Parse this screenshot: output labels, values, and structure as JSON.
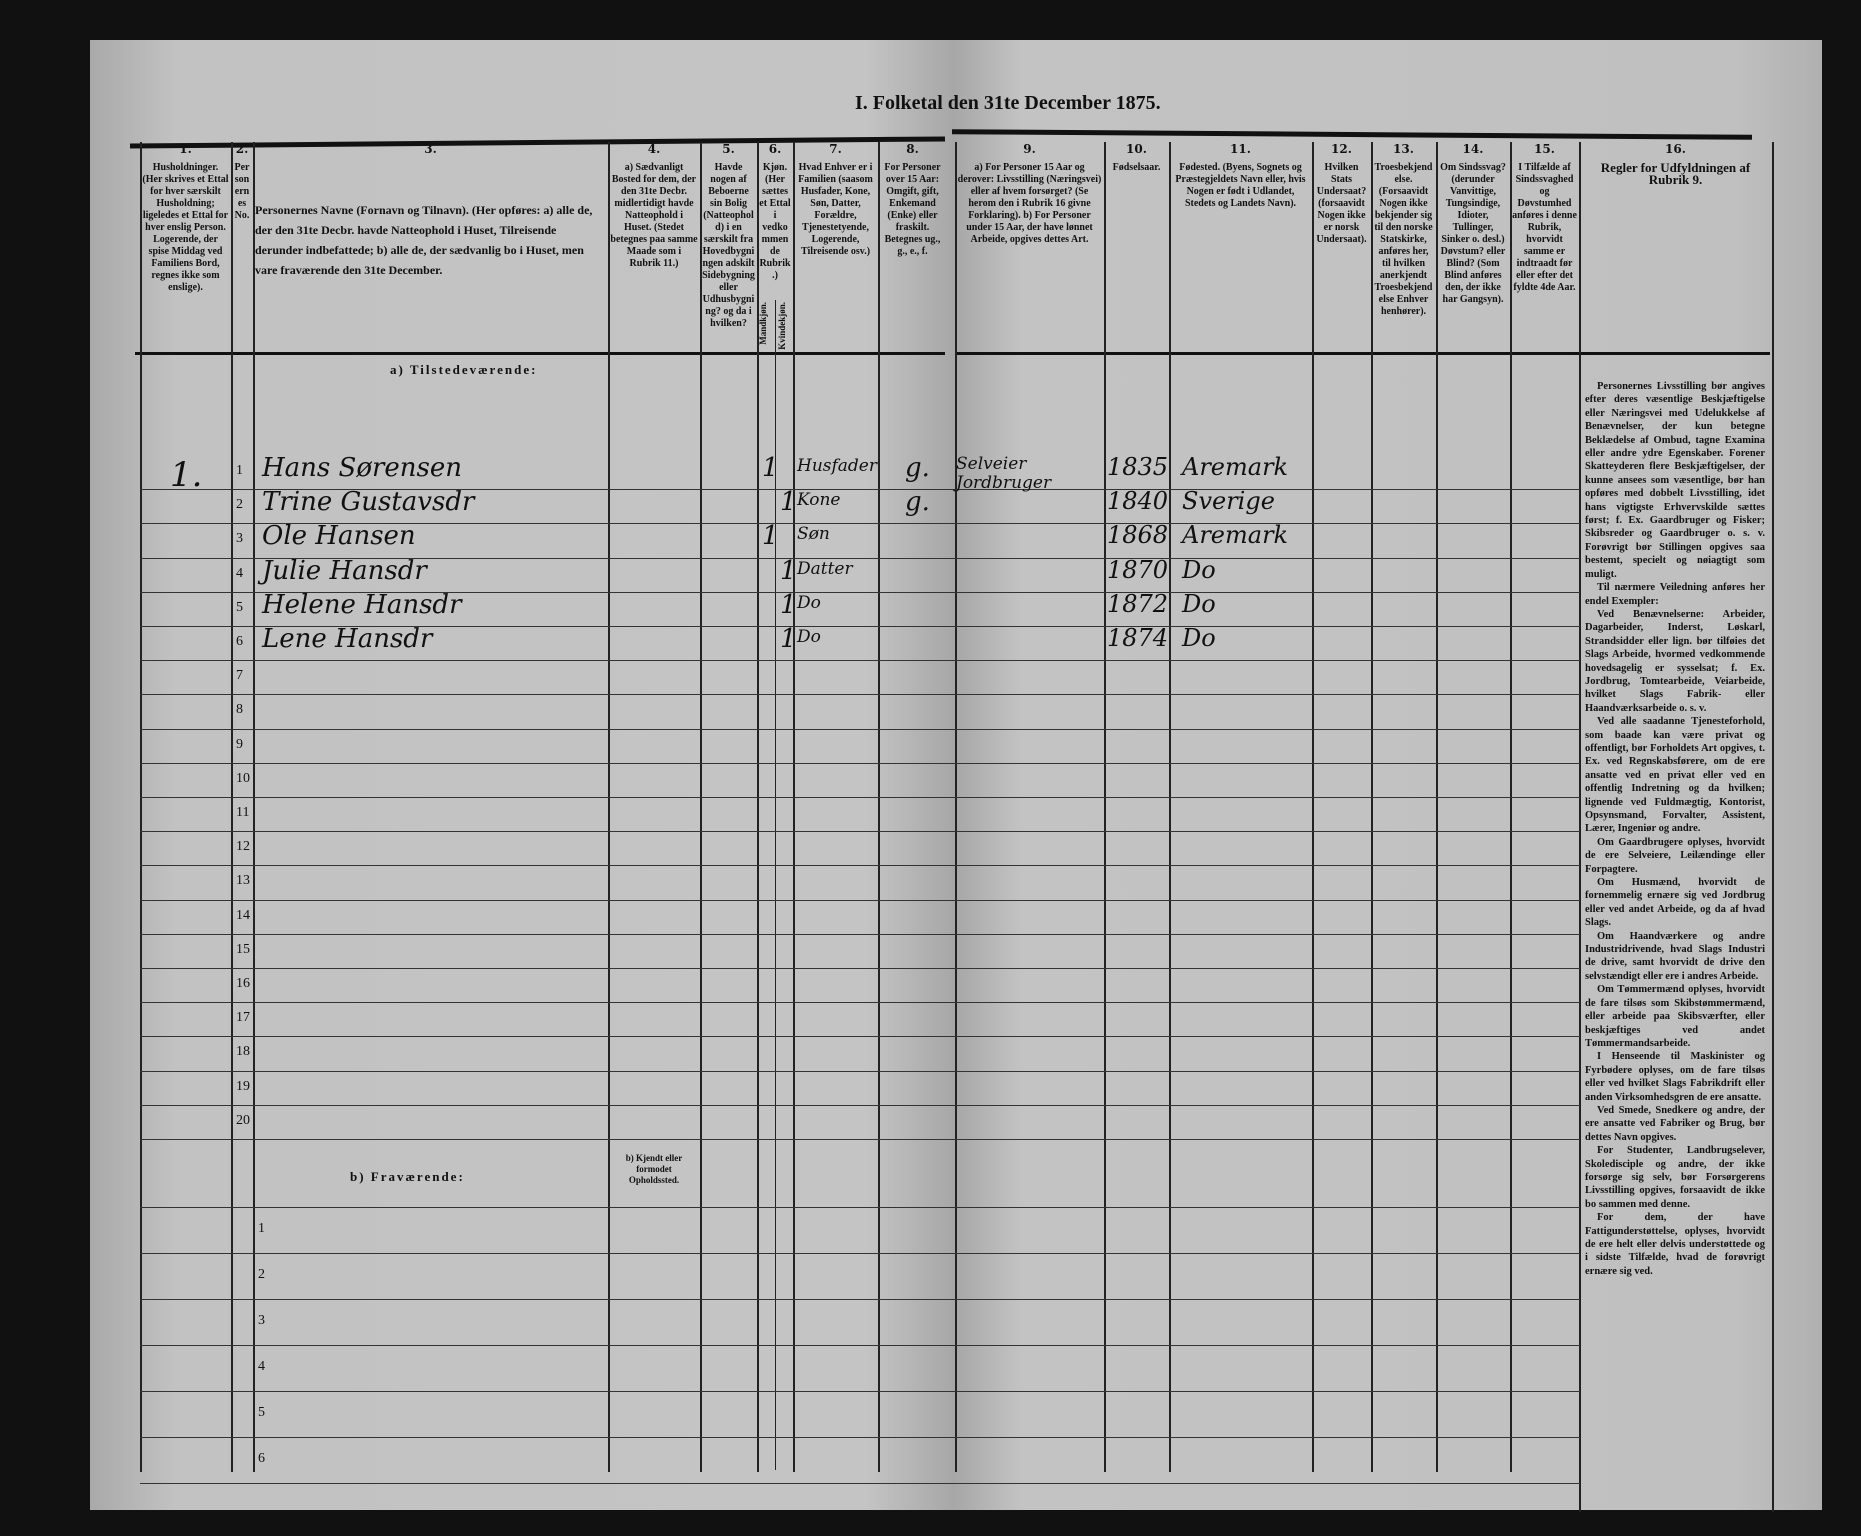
{
  "title": "I. Folketal den 31te December 1875.",
  "columns": [
    {
      "num": "1.",
      "header": "Husholdninger. (Her skrives et Ettal for hver særskilt Husholdning; ligeledes et Ettal for hver enslig Person. Logerende, der spise Middag ved Familiens Bord, regnes ikke som enslige)."
    },
    {
      "num": "2.",
      "header": "Personernes No."
    },
    {
      "num": "3.",
      "header": "Personernes Navne (Fornavn og Tilnavn). (Her opføres: a) alle de, der den 31te Decbr. havde Natteophold i Huset, Tilreisende derunder indbefattede; b) alle de, der sædvanlig bo i Huset, men vare fraværende den 31te December."
    },
    {
      "num": "4.",
      "header": "a) Sædvanligt Bosted for dem, der den 31te Decbr. midlertidigt havde Natteophold i Huset. (Stedet betegnes paa samme Maade som i Rubrik 11.)"
    },
    {
      "num": "5.",
      "header": "Havde nogen af Beboerne sin Bolig (Natteophold) i en særskilt fra Hovedbygningen adskilt Sidebygning eller Udhusbygning? og da i hvilken?"
    },
    {
      "num": "6.",
      "header": "Kjøn. (Her sættes et Ettal i vedkommende Rubrik.)"
    },
    {
      "num": "7.",
      "header": "Hvad Enhver er i Familien (saasom Husfader, Kone, Søn, Datter, Forældre, Tjenestetyende, Logerende, Tilreisende osv.)"
    },
    {
      "num": "8.",
      "header": "For Personer over 15 Aar: Omgift, gift, Enkemand (Enke) eller fraskilt. Betegnes ug., g., e., f."
    },
    {
      "num": "9.",
      "header": "a) For Personer 15 Aar og derover: Livsstilling (Næringsvei) eller af hvem forsørget? (Se herom den i Rubrik 16 givne Forklaring). b) For Personer under 15 Aar, der have lønnet Arbeide, opgives dettes Art."
    },
    {
      "num": "10.",
      "header": "Fødselsaar."
    },
    {
      "num": "11.",
      "header": "Fødested. (Byens, Sognets og Præstegjeldets Navn eller, hvis Nogen er født i Udlandet, Stedets og Landets Navn)."
    },
    {
      "num": "12.",
      "header": "Hvilken Stats Undersaat? (forsaavidt Nogen ikke er norsk Undersaat)."
    },
    {
      "num": "13.",
      "header": "Troesbekjendelse. (Forsaavidt Nogen ikke bekjender sig til den norske Statskirke, anføres her, til hvilken anerkjendt Troesbekjendelse Enhver henhører)."
    },
    {
      "num": "14.",
      "header": "Om Sindssvag? (derunder Vanvittige, Tungsindige, Idioter, Tullinger, Sinker o. desl.) Døvstum? eller Blind? (Som Blind anføres den, der ikke har Gangsyn)."
    },
    {
      "num": "15.",
      "header": "I Tilfælde af Sindssvaghed og Døvstumhed anføres i denne Rubrik, hvorvidt samme er indtraadt før eller efter det fyldte 4de Aar."
    },
    {
      "num": "16.",
      "header": "Regler for Udfyldningen af Rubrik 9."
    }
  ],
  "sex_subheaders": [
    "Mandkjøn.",
    "Kvindekjøn."
  ],
  "section_present": "a) Tilstedeværende:",
  "section_absent": "b) Fraværende:",
  "absent_col4_header": "b) Kjendt eller formodet Opholdssted.",
  "household_number": "1.",
  "persons": [
    {
      "no": "1",
      "name": "Hans Sørensen",
      "male": "1",
      "female": "",
      "role": "Husfader",
      "marital": "g.",
      "occupation": "Selveier Jordbruger",
      "born": "1835",
      "birthplace": "Aremark"
    },
    {
      "no": "2",
      "name": "Trine Gustavsdr",
      "male": "",
      "female": "1",
      "role": "Kone",
      "marital": "g.",
      "occupation": "",
      "born": "1840",
      "birthplace": "Sverige"
    },
    {
      "no": "3",
      "name": "Ole Hansen",
      "male": "1",
      "female": "",
      "role": "Søn",
      "marital": "",
      "occupation": "",
      "born": "1868",
      "birthplace": "Aremark"
    },
    {
      "no": "4",
      "name": "Julie Hansdr",
      "male": "",
      "female": "1",
      "role": "Datter",
      "marital": "",
      "occupation": "",
      "born": "1870",
      "birthplace": "Do"
    },
    {
      "no": "5",
      "name": "Helene Hansdr",
      "male": "",
      "female": "1",
      "role": "Do",
      "marital": "",
      "occupation": "",
      "born": "1872",
      "birthplace": "Do"
    },
    {
      "no": "6",
      "name": "Lene Hansdr",
      "male": "",
      "female": "1",
      "role": "Do",
      "marital": "",
      "occupation": "",
      "born": "1874",
      "birthplace": "Do"
    }
  ],
  "present_row_numbers": [
    "1",
    "2",
    "3",
    "4",
    "5",
    "6",
    "7",
    "8",
    "9",
    "10",
    "11",
    "12",
    "13",
    "14",
    "15",
    "16",
    "17",
    "18",
    "19",
    "20"
  ],
  "absent_row_numbers": [
    "1",
    "2",
    "3",
    "4",
    "5",
    "6"
  ],
  "rules_text": [
    "Personernes Livsstilling bør angives efter deres væsentlige Beskjæftigelse eller Næringsvei med Udelukkelse af Benævnelser, der kun betegne Beklædelse af Ombud, tagne Examina eller andre ydre Egenskaber. Forener Skatteyderen flere Beskjæftigelser, der kunne ansees som væsentlige, bør han opføres med dobbelt Livsstilling, idet hans vigtigste Erhvervskilde sættes først; f. Ex. Gaardbruger og Fisker; Skibsreder og Gaardbruger o. s. v. Forøvrigt bør Stillingen opgives saa bestemt, specielt og nøiagtigt som muligt.",
    "Til nærmere Veiledning anføres her endel Exempler:",
    "Ved Benævnelserne: Arbeider, Dagarbeider, Inderst, Løskarl, Strandsidder eller lign. bør tilføies det Slags Arbeide, hvormed vedkommende hovedsagelig er sysselsat; f. Ex. Jordbrug, Tomtearbeide, Veiarbeide, hvilket Slags Fabrik- eller Haandværksarbeide o. s. v.",
    "Ved alle saadanne Tjenesteforhold, som baade kan være privat og offentligt, bør Forholdets Art opgives, t. Ex. ved Regnskabsførere, om de ere ansatte ved en privat eller ved en offentlig Indretning og da hvilken; lignende ved Fuldmægtig, Kontorist, Opsynsmand, Forvalter, Assistent, Lærer, Ingeniør og andre.",
    "Om Gaardbrugere oplyses, hvorvidt de ere Selveiere, Leilændinge eller Forpagtere.",
    "Om Husmænd, hvorvidt de fornemmelig ernære sig ved Jordbrug eller ved andet Arbeide, og da af hvad Slags.",
    "Om Haandværkere og andre Industridrivende, hvad Slags Industri de drive, samt hvorvidt de drive den selvstændigt eller ere i andres Arbeide.",
    "Om Tømmermænd oplyses, hvorvidt de fare tilsøs som Skibstømmermænd, eller arbeide paa Skibsværfter, eller beskjæftiges ved andet Tømmermandsarbeide.",
    "I Henseende til Maskinister og Fyrbødere oplyses, om de fare tilsøs eller ved hvilket Slags Fabrikdrift eller anden Virksomhedsgren de ere ansatte.",
    "Ved Smede, Snedkere og andre, der ere ansatte ved Fabriker og Brug, bør dettes Navn opgives.",
    "For Studenter, Landbrugselever, Skoledisciple og andre, der ikke forsørge sig selv, bør Forsørgerens Livsstilling opgives, forsaavidt de ikke bo sammen med denne.",
    "For dem, der have Fattigunderstøttelse, oplyses, hvorvidt de ere helt eller delvis understøttede og i sidste Tilfælde, hvad de forøvrigt ernære sig ved."
  ]
}
